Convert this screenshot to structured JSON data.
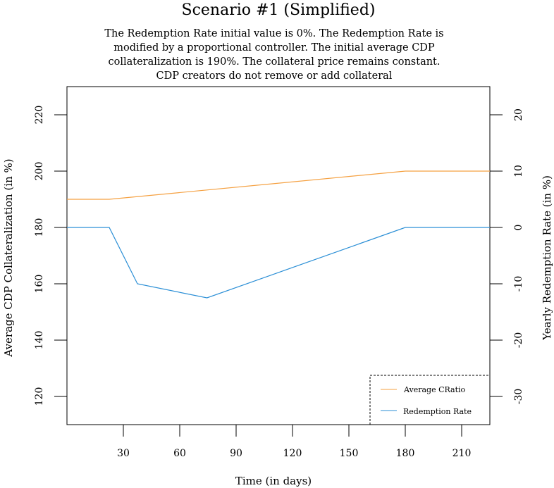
{
  "chart_data": {
    "type": "line",
    "title": "Scenario #1 (Simplified)",
    "subtitle_lines": [
      "The Redemption Rate initial value is 0%. The Redemption Rate is",
      "modified by a proportional controller. The initial average CDP",
      "collateralization is 190%. The collateral price remains constant.",
      "CDP creators do not remove or add collateral"
    ],
    "xlabel": "Time (in days)",
    "ylabel_left": "Average CDP Collateralization (in %)",
    "ylabel_right": "Yearly Redemption Rate (in %)",
    "xlim": [
      0,
      225
    ],
    "ylim_left": [
      110,
      230
    ],
    "ylim_right": [
      -35,
      25
    ],
    "x_ticks": [
      30,
      60,
      90,
      120,
      150,
      180,
      210
    ],
    "y_left_ticks": [
      120,
      140,
      160,
      180,
      200,
      220
    ],
    "y_right_ticks": [
      -30,
      -20,
      -10,
      0,
      10,
      20
    ],
    "grid": false,
    "legend_position": "bottom-right",
    "series": [
      {
        "name": "Average CRatio",
        "axis": "left",
        "color": "#f5a142",
        "x": [
          0,
          22.5,
          180,
          225
        ],
        "y": [
          190,
          190,
          200,
          200
        ]
      },
      {
        "name": "Redemption Rate",
        "axis": "right",
        "color": "#2b8fd6",
        "x": [
          0,
          22.5,
          37.5,
          74.5,
          180,
          225
        ],
        "y": [
          0,
          0,
          -10,
          -12.5,
          0,
          0
        ]
      }
    ]
  }
}
